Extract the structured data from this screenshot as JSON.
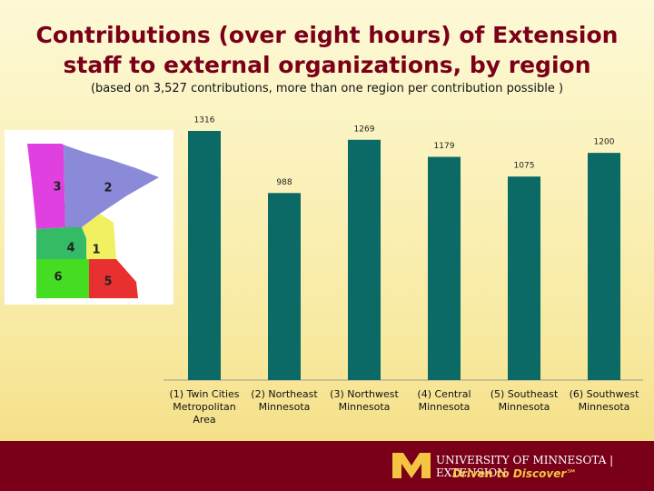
{
  "chart_data": {
    "type": "bar",
    "title": "Contributions (over eight hours) of Extension staff to external organizations, by region",
    "subtitle": "(based on 3,527 contributions, more than one region per contribution possible )",
    "categories": [
      "(1) Twin Cities Metropolitan Area",
      "(2) Northeast Minnesota",
      "(3) Northwest Minnesota",
      "(4) Central Minnesota",
      "(5) Southeast Minnesota",
      "(6) Southwest Minnesota"
    ],
    "values": [
      1316,
      988,
      1269,
      1179,
      1075,
      1200
    ],
    "color": "#0b6a66",
    "ylim": [
      0,
      1400
    ]
  },
  "map": {
    "labels": [
      "3",
      "2",
      "4",
      "1",
      "6",
      "5"
    ]
  },
  "footer": {
    "university": "UNIVERSITY OF MINNESOTA | EXTENSION",
    "tagline": "Driven to Discover℠"
  }
}
